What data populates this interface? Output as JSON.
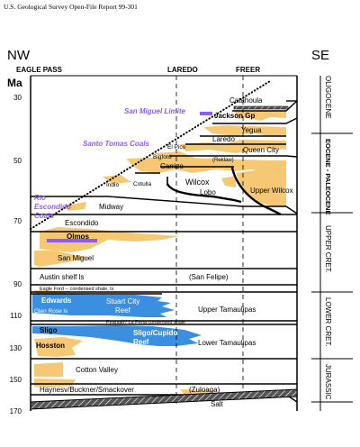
{
  "report_title": "U.S. Geological Survey Open-File Report 99-301",
  "compass": {
    "left": "NW",
    "right": "SE"
  },
  "localities": [
    "EAGLE PASS",
    "LAREDO",
    "FREER"
  ],
  "age_axis": {
    "unit": "Ma",
    "ticks": [
      "30",
      "50",
      "70",
      "90",
      "110",
      "130",
      "150",
      "170"
    ]
  },
  "epochs": [
    {
      "label": "OLIGOCENE"
    },
    {
      "label": "EOCENE - PALEOCENE"
    },
    {
      "label": "UPPER CRET."
    },
    {
      "label": "LOWER CRET."
    },
    {
      "label": "JURASSIC"
    }
  ],
  "formations": {
    "catahoula": "Catahoula",
    "jackson": "Jackson Gp",
    "yegua": "Yegua",
    "laredo": "Laredo",
    "elpico": "El Pico",
    "queen_city": "Queen City",
    "bigford": "Bigford",
    "reklaw": "(Reklaw)",
    "carrizo": "Carrizo",
    "wilcox": "Wilcox",
    "indio": "Indio",
    "cotulla": "Cotulla",
    "lobo": "Lobo",
    "upper_wilcox": "Upper Wilcox",
    "midway": "Midway",
    "escondido": "Escondido",
    "olmos": "Olmos",
    "san_miguel": "San Miguel",
    "austin": "Austin shelf ls",
    "san_felipe": "(San Felipe)",
    "eagle_ford": "Eagle Ford -- condensed shale, ls",
    "edwards": "Edwards",
    "stuart_city": "Stuart City",
    "reef1": "Reef",
    "glen_rose": "Glen Rose ls",
    "upper_tamaulipas": "Upper Tamaulipas",
    "pearsall": "Pearsall / La Pena condensed shale",
    "sligo": "Sligo",
    "sligo_cupido": "Sligo/Cupido",
    "reef2": "Reef",
    "hosston": "Hosston",
    "lower_tamaulipas": "Lower Tamaulipas",
    "cotton_valley": "Cotton Valley",
    "haynesv": "Haynesv/Buckner/Smackover",
    "zuloaga": "(Zuloaga)",
    "salt": "Salt"
  },
  "coal_labels": {
    "san_miguel_limite": "San Miguel Limite",
    "santo_tomas": "Santo Tomas Coals",
    "rio_escondido_1": "Rio",
    "rio_escondido_2": "Escondido",
    "rio_escondido_3": "Coals"
  },
  "colors": {
    "sand": "#f6c873",
    "carbonate": "#3b8fe0",
    "coal": "#8d5cf0",
    "line": "#000000"
  }
}
